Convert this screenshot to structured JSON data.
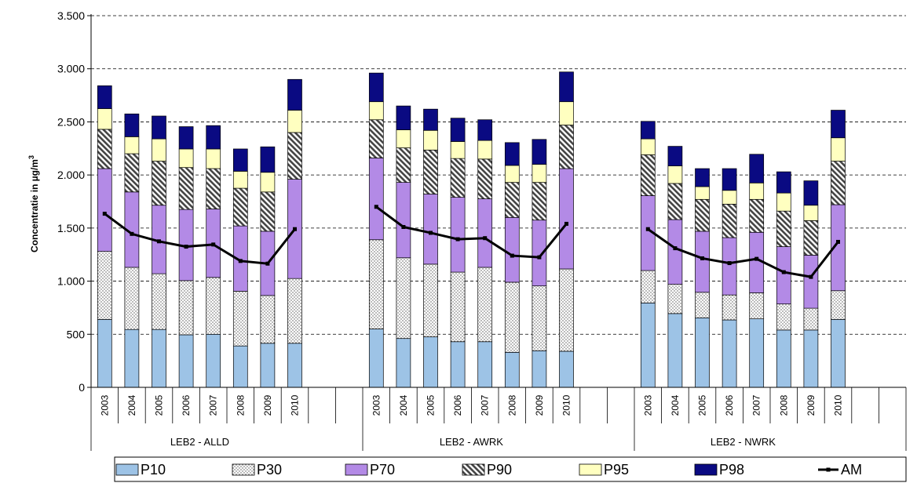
{
  "chart_data": {
    "type": "bar",
    "stacked": true,
    "title": "",
    "ylabel": "Concentratie in µg/m",
    "ylabel_superscript": "3",
    "ylim": [
      0,
      3500
    ],
    "yticks": [
      0,
      500,
      1000,
      1500,
      2000,
      2500,
      3000,
      3500
    ],
    "ytick_labels": [
      "0",
      "500",
      "1.000",
      "1.500",
      "2.000",
      "2.500",
      "3.000",
      "3.500"
    ],
    "grid": "horizontal dashed",
    "legend_position": "bottom",
    "groups": [
      {
        "name": "LEB2 - ALLD",
        "categories": [
          "2003",
          "2004",
          "2005",
          "2006",
          "2007",
          "2008",
          "2009",
          "2010"
        ],
        "P10": [
          640,
          545,
          545,
          495,
          500,
          390,
          415,
          415
        ],
        "P30": [
          1280,
          1130,
          1070,
          1005,
          1035,
          905,
          865,
          1025
        ],
        "P70": [
          2060,
          1840,
          1715,
          1675,
          1680,
          1520,
          1470,
          1960
        ],
        "P90": [
          2430,
          2200,
          2130,
          2070,
          2060,
          1875,
          1840,
          2400
        ],
        "P95": [
          2625,
          2360,
          2340,
          2245,
          2245,
          2035,
          2025,
          2610
        ],
        "P98": [
          2840,
          2575,
          2555,
          2455,
          2465,
          2245,
          2265,
          2900
        ],
        "AM": [
          1635,
          1445,
          1375,
          1325,
          1345,
          1190,
          1165,
          1490
        ]
      },
      {
        "name": "LEB2 - AWRK",
        "categories": [
          "2003",
          "2004",
          "2005",
          "2006",
          "2007",
          "2008",
          "2009",
          "2010"
        ],
        "P10": [
          550,
          460,
          475,
          430,
          430,
          330,
          345,
          340
        ],
        "P30": [
          1390,
          1220,
          1160,
          1085,
          1130,
          990,
          955,
          1115
        ],
        "P70": [
          2160,
          1930,
          1820,
          1790,
          1775,
          1600,
          1575,
          2060
        ],
        "P90": [
          2520,
          2255,
          2235,
          2155,
          2150,
          1930,
          1930,
          2470
        ],
        "P95": [
          2690,
          2425,
          2420,
          2315,
          2325,
          2090,
          2100,
          2690
        ],
        "P98": [
          2960,
          2650,
          2620,
          2535,
          2520,
          2305,
          2335,
          2970
        ],
        "AM": [
          1700,
          1510,
          1455,
          1395,
          1405,
          1240,
          1225,
          1540
        ]
      },
      {
        "name": "LEB2 - NWRK",
        "categories": [
          "2003",
          "2004",
          "2005",
          "2006",
          "2007",
          "2008",
          "2009",
          "2010"
        ],
        "P10": [
          795,
          695,
          655,
          635,
          645,
          540,
          540,
          640
        ],
        "P30": [
          1100,
          970,
          895,
          870,
          890,
          785,
          745,
          910
        ],
        "P70": [
          1805,
          1580,
          1470,
          1410,
          1460,
          1325,
          1245,
          1720
        ],
        "P90": [
          2190,
          1920,
          1770,
          1725,
          1770,
          1660,
          1570,
          2130
        ],
        "P95": [
          2340,
          2085,
          1890,
          1855,
          1925,
          1830,
          1715,
          2350
        ],
        "P98": [
          2505,
          2270,
          2060,
          2060,
          2195,
          2030,
          1945,
          2610
        ],
        "AM": [
          1490,
          1310,
          1215,
          1170,
          1210,
          1085,
          1040,
          1370
        ]
      }
    ],
    "series": [
      {
        "name": "P10",
        "color": "#9DC3E6",
        "pattern": "solid"
      },
      {
        "name": "P30",
        "color": "#FFFFFF",
        "pattern": "dots"
      },
      {
        "name": "P70",
        "color": "#B38AE6",
        "pattern": "solid"
      },
      {
        "name": "P90",
        "color": "#7F7F7F",
        "pattern": "diagonal-hatch"
      },
      {
        "name": "P95",
        "color": "#FFFFC0",
        "pattern": "solid"
      },
      {
        "name": "P98",
        "color": "#0A0A82",
        "pattern": "solid"
      },
      {
        "name": "AM",
        "color": "#000000",
        "pattern": "line-with-markers"
      }
    ]
  }
}
